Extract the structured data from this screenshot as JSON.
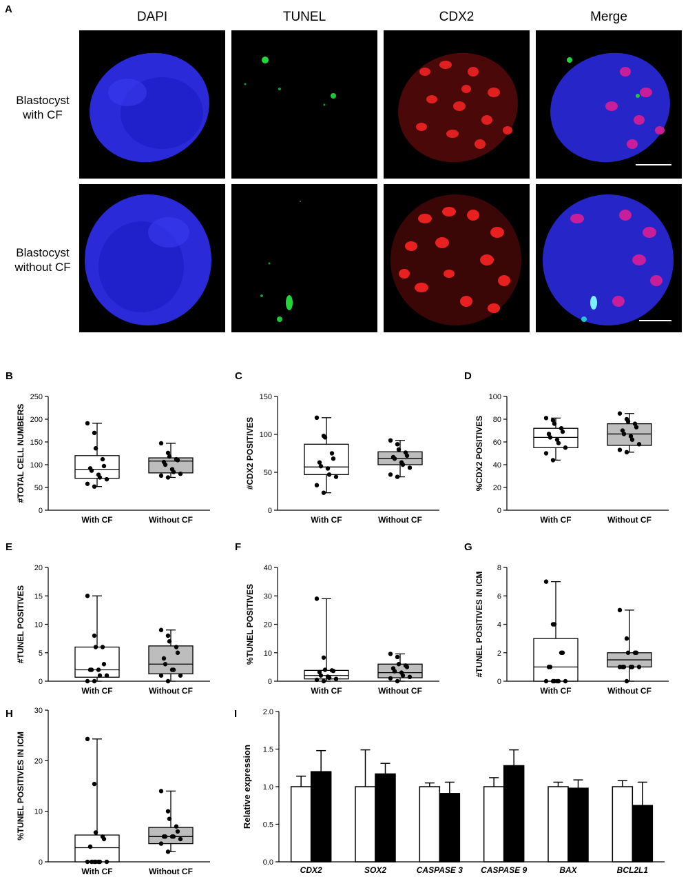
{
  "panelA": {
    "label": "A",
    "channels": [
      "DAPI",
      "TUNEL",
      "CDX2",
      "Merge"
    ],
    "rows": [
      {
        "line1": "Blastocyst",
        "line2": "with CF"
      },
      {
        "line1": "Blastocyst",
        "line2": "without CF"
      }
    ]
  },
  "boxplots": [
    {
      "label": "B",
      "ylabel": "#TOTAL CELL NUMBERS",
      "ylim": [
        0,
        250
      ],
      "ticks": [
        0,
        50,
        100,
        150,
        200,
        250
      ],
      "groups": [
        {
          "name": "With CF",
          "fill": "#ffffff",
          "min": 52,
          "q1": 70,
          "median": 90,
          "q3": 120,
          "max": 191,
          "points": [
            191,
            170,
            136,
            112,
            97,
            92,
            87,
            78,
            72,
            68,
            58,
            52
          ]
        },
        {
          "name": "Without CF",
          "fill": "#bdbdbd",
          "min": 72,
          "q1": 82,
          "median": 108,
          "q3": 115,
          "max": 147,
          "points": [
            147,
            126,
            118,
            112,
            110,
            106,
            100,
            90,
            84,
            80,
            76,
            72
          ]
        }
      ]
    },
    {
      "label": "C",
      "ylabel": "#CDX2 POSITIVES",
      "ylim": [
        0,
        150
      ],
      "ticks": [
        0,
        50,
        100,
        150
      ],
      "groups": [
        {
          "name": "With CF",
          "fill": "#ffffff",
          "min": 23,
          "q1": 47,
          "median": 57,
          "q3": 87,
          "max": 122,
          "points": [
            122,
            98,
            96,
            75,
            68,
            63,
            58,
            55,
            47,
            44,
            33,
            23
          ]
        },
        {
          "name": "Without CF",
          "fill": "#bdbdbd",
          "min": 44,
          "q1": 60,
          "median": 68,
          "q3": 77,
          "max": 92,
          "points": [
            92,
            87,
            80,
            76,
            72,
            70,
            68,
            63,
            60,
            56,
            47,
            44
          ]
        }
      ]
    },
    {
      "label": "D",
      "ylabel": "%CDX2 POSITIVES",
      "ylim": [
        0,
        100
      ],
      "ticks": [
        0,
        20,
        40,
        60,
        80,
        100
      ],
      "groups": [
        {
          "name": "With CF",
          "fill": "#ffffff",
          "min": 44,
          "q1": 55,
          "median": 64,
          "q3": 72,
          "max": 81,
          "points": [
            81,
            79,
            76,
            72,
            69,
            67,
            64,
            62,
            59,
            55,
            50,
            44
          ]
        },
        {
          "name": "Without CF",
          "fill": "#bdbdbd",
          "min": 51,
          "q1": 57,
          "median": 67,
          "q3": 76,
          "max": 85,
          "points": [
            85,
            80,
            78,
            76,
            73,
            70,
            67,
            65,
            62,
            58,
            53,
            51
          ]
        }
      ]
    },
    {
      "label": "E",
      "ylabel": "#TUNEL POSITIVES",
      "ylim": [
        0,
        20
      ],
      "ticks": [
        0,
        5,
        10,
        15,
        20
      ],
      "groups": [
        {
          "name": "With CF",
          "fill": "#ffffff",
          "min": 0,
          "q1": 0.7,
          "median": 2,
          "q3": 6,
          "max": 15,
          "points": [
            15,
            8,
            6,
            6,
            3,
            2,
            2,
            2,
            1,
            1,
            0,
            0
          ]
        },
        {
          "name": "Without CF",
          "fill": "#bdbdbd",
          "min": 0,
          "q1": 1.3,
          "median": 3,
          "q3": 6.2,
          "max": 9,
          "points": [
            9,
            8,
            7,
            6,
            5,
            4,
            3,
            2,
            2,
            1,
            1,
            0
          ]
        }
      ]
    },
    {
      "label": "F",
      "ylabel": "%TUNEL POSITIVES",
      "ylim": [
        0,
        40
      ],
      "ticks": [
        0,
        10,
        20,
        30,
        40
      ],
      "groups": [
        {
          "name": "With CF",
          "fill": "#ffffff",
          "min": 0,
          "q1": 0.8,
          "median": 2,
          "q3": 3.8,
          "max": 29,
          "points": [
            29,
            8.3,
            4,
            3.8,
            3.6,
            3.2,
            2,
            1.6,
            1.2,
            0.8,
            0.5,
            0
          ]
        },
        {
          "name": "Without CF",
          "fill": "#bdbdbd",
          "min": 0,
          "q1": 1.2,
          "median": 3,
          "q3": 6,
          "max": 9.6,
          "points": [
            9.6,
            8.5,
            6,
            5.5,
            5,
            4.5,
            3.5,
            3,
            2,
            1.5,
            1,
            0
          ]
        }
      ]
    },
    {
      "label": "G",
      "ylabel": "#TUNEL POSITIVES IN ICM",
      "ylim": [
        0,
        8
      ],
      "ticks": [
        0,
        2,
        4,
        6,
        8
      ],
      "groups": [
        {
          "name": "With CF",
          "fill": "#ffffff",
          "min": 0,
          "q1": 0,
          "median": 1,
          "q3": 3,
          "max": 7,
          "points": [
            7,
            4,
            4,
            2,
            2,
            1,
            1,
            0,
            0,
            0,
            0,
            0,
            0
          ]
        },
        {
          "name": "Without CF",
          "fill": "#bdbdbd",
          "min": 0,
          "q1": 1,
          "median": 1.5,
          "q3": 2,
          "max": 5,
          "points": [
            5,
            3,
            2,
            2,
            2,
            1,
            1,
            1,
            1,
            1,
            1,
            0
          ]
        }
      ]
    },
    {
      "label": "H",
      "ylabel": "%TUNEL POSITIVES IN ICM",
      "ylim": [
        0,
        30
      ],
      "ticks": [
        0,
        10,
        20,
        30
      ],
      "groups": [
        {
          "name": "With CF",
          "fill": "#ffffff",
          "min": 0,
          "q1": 0,
          "median": 2.8,
          "q3": 5.3,
          "max": 24.3,
          "points": [
            24.3,
            15.4,
            5.8,
            5,
            4.5,
            3,
            0,
            0,
            0,
            0,
            0,
            0,
            0
          ]
        },
        {
          "name": "Without CF",
          "fill": "#bdbdbd",
          "min": 2,
          "q1": 3.6,
          "median": 5,
          "q3": 6.8,
          "max": 14,
          "points": [
            14,
            10,
            8.5,
            7,
            6,
            5,
            5,
            5,
            5,
            4.5,
            3.6,
            2
          ]
        }
      ]
    }
  ],
  "barchart": {
    "label": "I",
    "ylabel": "Relative expression",
    "ylim": [
      0,
      2.0
    ],
    "ticks": [
      "0.0",
      "0.5",
      "1.0",
      "1.5",
      "2.0"
    ],
    "colors": {
      "with_cf": "#ffffff",
      "without_cf": "#000000"
    },
    "categories": [
      "CDX2",
      "SOX2",
      "CASPASE 3",
      "CASPASE 9",
      "BAX",
      "BCL2L1"
    ],
    "series": [
      {
        "values": [
          1.0,
          1.0,
          1.0,
          1.0,
          1.0,
          1.0
        ],
        "errors": [
          0.14,
          0.49,
          0.05,
          0.12,
          0.06,
          0.08
        ]
      },
      {
        "values": [
          1.2,
          1.17,
          0.91,
          1.28,
          0.98,
          0.75
        ],
        "errors": [
          0.28,
          0.14,
          0.15,
          0.21,
          0.11,
          0.31
        ]
      }
    ]
  }
}
